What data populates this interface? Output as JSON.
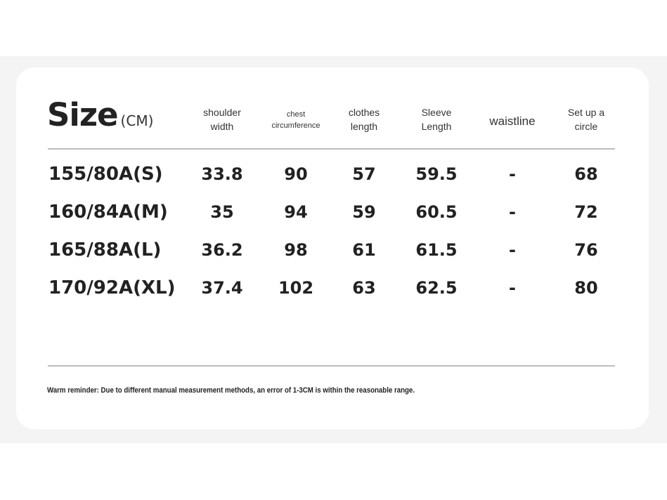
{
  "title": {
    "main": "Size",
    "unit": "(CM)"
  },
  "columns": [
    {
      "lines": [
        "shoulder",
        "width"
      ]
    },
    {
      "lines": [
        "chest",
        "circumference"
      ]
    },
    {
      "lines": [
        "clothes",
        "length"
      ]
    },
    {
      "lines": [
        "Sleeve",
        "Length"
      ]
    },
    {
      "lines": [
        "waistline"
      ]
    },
    {
      "lines": [
        "Set up a",
        "circle"
      ]
    }
  ],
  "rows": [
    {
      "size": "155/80A(S)",
      "values": [
        "33.8",
        "90",
        "57",
        "59.5",
        "-",
        "68"
      ]
    },
    {
      "size": "160/84A(M)",
      "values": [
        "35",
        "94",
        "59",
        "60.5",
        "-",
        "72"
      ]
    },
    {
      "size": "165/88A(L)",
      "values": [
        "36.2",
        "98",
        "61",
        "61.5",
        "-",
        "76"
      ]
    },
    {
      "size": "170/92A(XL)",
      "values": [
        "37.4",
        "102",
        "63",
        "62.5",
        "-",
        "80"
      ]
    }
  ],
  "note": "Warm reminder: Due to different manual measurement methods, an error of 1-3CM is within the reasonable range."
}
